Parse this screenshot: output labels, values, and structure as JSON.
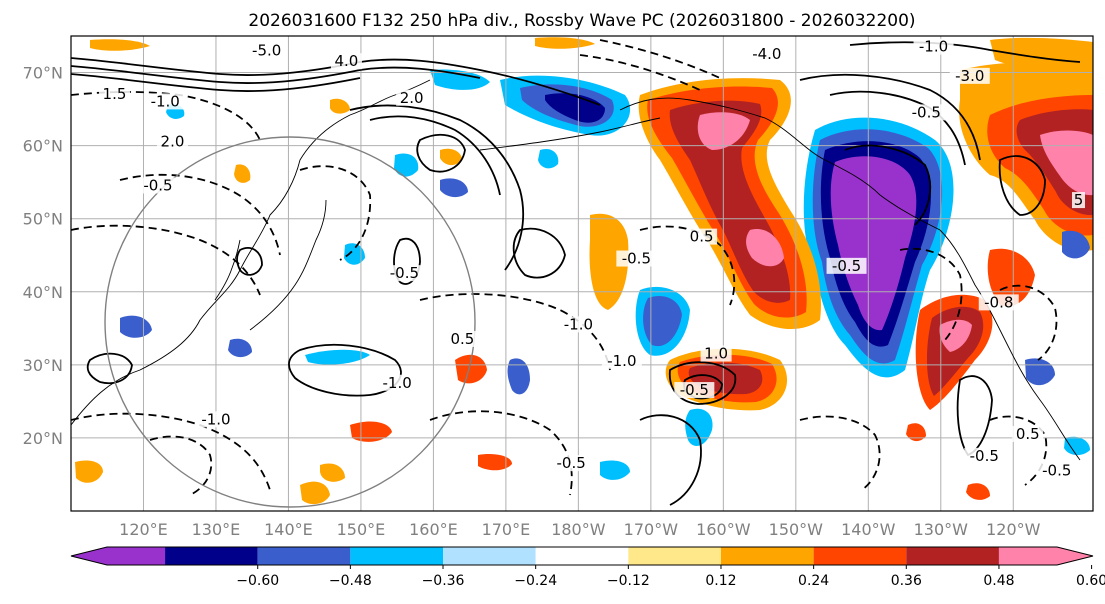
{
  "title": "2026031600 F132 250 hPa div., Rossby Wave PC (2026031800 - 2026032200)",
  "map": {
    "lon_range": [
      110,
      251
    ],
    "lat_range": [
      10,
      75
    ],
    "lat_ticks": [
      {
        "value": 70,
        "label": "70°N"
      },
      {
        "value": 60,
        "label": "60°N"
      },
      {
        "value": 50,
        "label": "50°N"
      },
      {
        "value": 40,
        "label": "40°N"
      },
      {
        "value": 30,
        "label": "30°N"
      },
      {
        "value": 20,
        "label": "20°N"
      }
    ],
    "lon_ticks": [
      {
        "value": 120,
        "label": "120°E"
      },
      {
        "value": 130,
        "label": "130°E"
      },
      {
        "value": 140,
        "label": "140°E"
      },
      {
        "value": 150,
        "label": "150°E"
      },
      {
        "value": 160,
        "label": "160°E"
      },
      {
        "value": 170,
        "label": "170°E"
      },
      {
        "value": 180,
        "label": "180°W"
      },
      {
        "value": 190,
        "label": "170°W"
      },
      {
        "value": 200,
        "label": "160°W"
      },
      {
        "value": 210,
        "label": "150°W"
      },
      {
        "value": 220,
        "label": "140°W"
      },
      {
        "value": 230,
        "label": "130°W"
      },
      {
        "value": 240,
        "label": "120°W"
      }
    ],
    "contour_labels": [
      {
        "text": "-5.0",
        "lon": 137,
        "lat": 72.5
      },
      {
        "text": "4.0",
        "lon": 148,
        "lat": 71
      },
      {
        "text": "2.0",
        "lon": 157,
        "lat": 66
      },
      {
        "text": "1.5",
        "lon": 116,
        "lat": 66.5
      },
      {
        "text": "-1.0",
        "lon": 123,
        "lat": 65.5
      },
      {
        "text": "2.0",
        "lon": 124,
        "lat": 60
      },
      {
        "text": "-0.5",
        "lon": 122,
        "lat": 54
      },
      {
        "text": "-0.5",
        "lon": 156,
        "lat": 42
      },
      {
        "text": "-0.5",
        "lon": 188,
        "lat": 44
      },
      {
        "text": "0.5",
        "lon": 197,
        "lat": 47
      },
      {
        "text": "0.5",
        "lon": 164,
        "lat": 33
      },
      {
        "text": "-1.0",
        "lon": 180,
        "lat": 35
      },
      {
        "text": "-1.0",
        "lon": 186,
        "lat": 30
      },
      {
        "text": "-1.0",
        "lon": 155,
        "lat": 27
      },
      {
        "text": "-1.0",
        "lon": 130,
        "lat": 22
      },
      {
        "text": "-0.5",
        "lon": 196,
        "lat": 26
      },
      {
        "text": "1.0",
        "lon": 199,
        "lat": 31
      },
      {
        "text": "-0.5",
        "lon": 179,
        "lat": 16
      },
      {
        "text": "-0.5",
        "lon": 217,
        "lat": 43
      },
      {
        "text": "-0.8",
        "lon": 238,
        "lat": 38
      },
      {
        "text": "-0.5",
        "lon": 236,
        "lat": 17
      },
      {
        "text": "0.5",
        "lon": 242,
        "lat": 20
      },
      {
        "text": "-0.5",
        "lon": 246,
        "lat": 15
      },
      {
        "text": "-1.0",
        "lon": 229,
        "lat": 73
      },
      {
        "text": "-3.0",
        "lon": 234,
        "lat": 69
      },
      {
        "text": "-4.0",
        "lon": 206,
        "lat": 72
      },
      {
        "text": "-0.5",
        "lon": 228,
        "lat": 64
      },
      {
        "text": "5",
        "lon": 249,
        "lat": 52
      }
    ]
  },
  "colorbar": {
    "colors": [
      "#9932cc",
      "#00008b",
      "#3a5fcd",
      "#00bfff",
      "#b0e2ff",
      "#ffffff",
      "#ffe88a",
      "#ffa500",
      "#ff4500",
      "#b22222",
      "#ff82ab"
    ],
    "ticks": [
      "−0.60",
      "−0.48",
      "−0.36",
      "−0.24",
      "−0.12",
      "0.12",
      "0.24",
      "0.36",
      "0.48",
      "0.60"
    ]
  }
}
